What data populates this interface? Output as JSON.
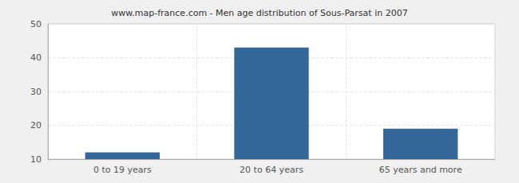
{
  "chart_data": {
    "type": "bar",
    "title": "www.map-france.com - Men age distribution of Sous-Parsat in 2007",
    "categories": [
      "0 to 19 years",
      "20 to 64 years",
      "65 years and more"
    ],
    "values": [
      12,
      43,
      19
    ],
    "color": "#336699",
    "ylim": [
      10,
      50
    ],
    "yticks": [
      10,
      20,
      30,
      40,
      50
    ],
    "grid": true
  }
}
